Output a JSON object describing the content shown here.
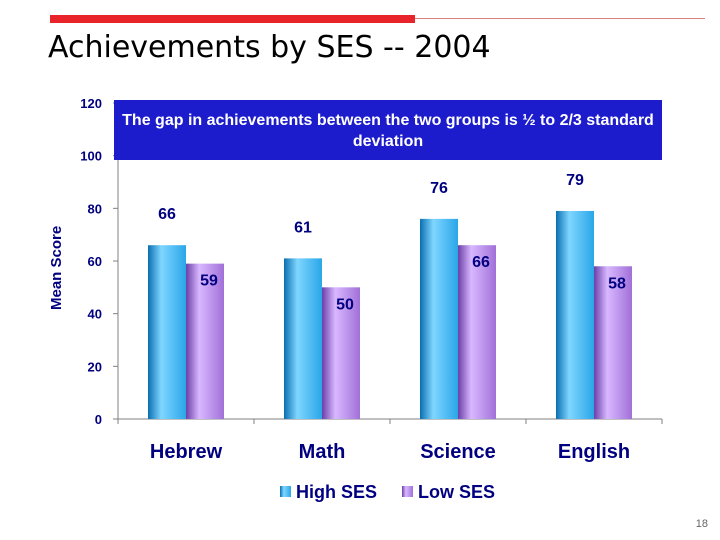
{
  "slide": {
    "title": "Achievements by SES -- 2004",
    "callout": "The gap in achievements between the two groups is ½ to 2/3 standard deviation",
    "page_number": "18"
  },
  "colors": {
    "title_accent": "#e8242a",
    "axis_text": "#000080",
    "callout_bg": "#1c1ccc",
    "high_ses": "#2aa6e8",
    "low_ses": "#a070d8"
  },
  "chart_data": {
    "type": "bar",
    "title": "",
    "xlabel": "",
    "ylabel": "Mean Score",
    "ylim": [
      0,
      120
    ],
    "yticks": [
      0,
      20,
      40,
      60,
      80,
      100,
      120
    ],
    "grid": false,
    "legend": "bottom",
    "categories": [
      "Hebrew",
      "Math",
      "Science",
      "English"
    ],
    "series": [
      {
        "name": "High SES",
        "values": [
          66,
          61,
          76,
          79
        ],
        "color": "#2aa6e8"
      },
      {
        "name": "Low SES",
        "values": [
          59,
          50,
          66,
          58
        ],
        "color": "#a070d8"
      }
    ]
  }
}
